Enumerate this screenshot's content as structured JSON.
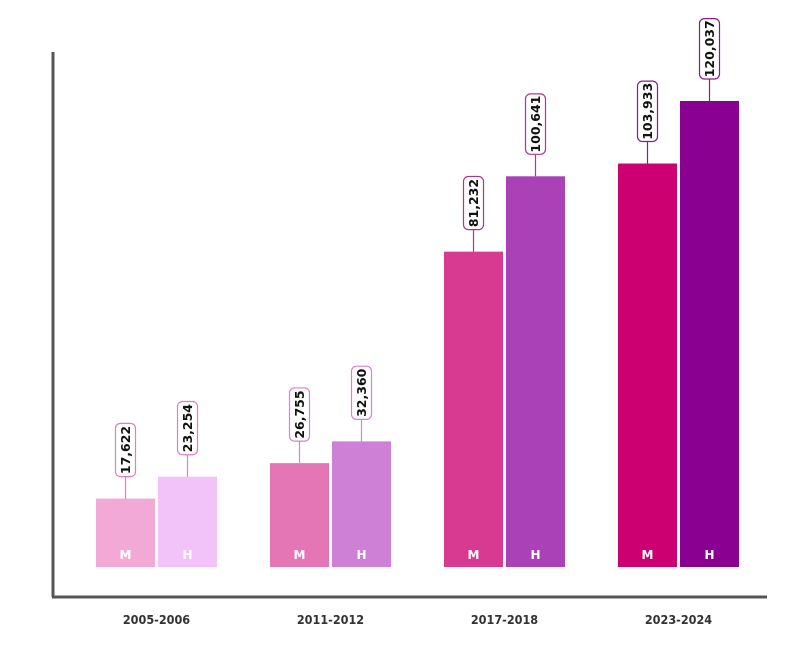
{
  "chart_data": {
    "type": "bar",
    "title": "",
    "xlabel": "",
    "ylabel": "",
    "categories": [
      "2005-2006",
      "2011-2012",
      "2017-2018",
      "2023-2024"
    ],
    "series": [
      {
        "name": "M",
        "values": [
          17622,
          26755,
          81232,
          103933
        ]
      },
      {
        "name": "H",
        "values": [
          23254,
          32360,
          100641,
          120037
        ]
      }
    ],
    "value_labels": [
      [
        "17,622",
        "23,254"
      ],
      [
        "26,755",
        "32,360"
      ],
      [
        "81,232",
        "100,641"
      ],
      [
        "103,933",
        "120,037"
      ]
    ],
    "bar_colors": [
      [
        "#f2a9d6",
        "#f2c3f8"
      ],
      [
        "#e576b6",
        "#cd80d5"
      ],
      [
        "#d93a91",
        "#ab41b6"
      ],
      [
        "#cc0070",
        "#8a0091"
      ]
    ],
    "label_border_colors": [
      "#e77ac1",
      "#d97fdc",
      "#b4338c",
      "#8b1a8f"
    ],
    "ylim": [
      0,
      120037
    ],
    "grid": false,
    "legend": "none"
  }
}
